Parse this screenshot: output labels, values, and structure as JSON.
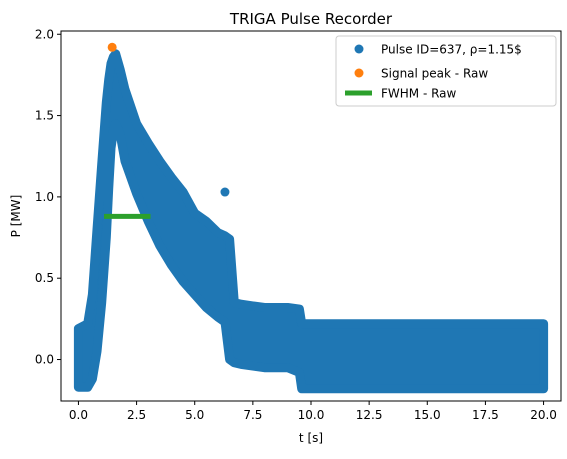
{
  "chart_data": {
    "type": "scatter",
    "title": "TRIGA Pulse Recorder",
    "xlabel": "t [s]",
    "ylabel": "P [MW]",
    "xlim": [
      -0.75,
      20.75
    ],
    "ylim": [
      -0.255,
      2.02
    ],
    "xticks": [
      0.0,
      2.5,
      5.0,
      7.5,
      10.0,
      12.5,
      15.0,
      17.5,
      20.0
    ],
    "xtick_labels": [
      "0.0",
      "2.5",
      "5.0",
      "7.5",
      "10.0",
      "12.5",
      "15.0",
      "17.5",
      "20.0"
    ],
    "yticks": [
      0.0,
      0.5,
      1.0,
      1.5,
      2.0
    ],
    "ytick_labels": [
      "0.0",
      "0.5",
      "1.0",
      "1.5",
      "2.0"
    ],
    "grid": false,
    "legend_position": "top-right",
    "series": [
      {
        "name": "Pulse ID=637, ρ=1.15$",
        "kind": "scatter-band",
        "color": "#1f77b4",
        "envelope": {
          "t": [
            0.0,
            0.4,
            0.6,
            0.8,
            1.0,
            1.2,
            1.3,
            1.4,
            1.5,
            1.6,
            1.8,
            2.0,
            2.5,
            3.0,
            3.5,
            4.0,
            4.5,
            5.0,
            5.5,
            6.0,
            6.3,
            6.5,
            6.7,
            7.0,
            7.5,
            8.0,
            9.0,
            9.5,
            9.6,
            10.0,
            12.5,
            15.0,
            17.5,
            20.0
          ],
          "upper": [
            0.19,
            0.22,
            0.4,
            0.8,
            1.2,
            1.58,
            1.72,
            1.82,
            1.86,
            1.88,
            1.78,
            1.66,
            1.45,
            1.33,
            1.22,
            1.12,
            1.03,
            0.9,
            0.85,
            0.78,
            0.76,
            0.74,
            0.35,
            0.34,
            0.33,
            0.32,
            0.32,
            0.31,
            0.22,
            0.22,
            0.22,
            0.22,
            0.22,
            0.22
          ],
          "lower": [
            -0.17,
            -0.17,
            -0.12,
            0.05,
            0.35,
            0.75,
            1.05,
            1.3,
            1.4,
            1.45,
            1.38,
            1.22,
            1.02,
            0.85,
            0.7,
            0.58,
            0.48,
            0.4,
            0.32,
            0.26,
            0.23,
            0.0,
            -0.02,
            -0.03,
            -0.04,
            -0.05,
            -0.05,
            -0.08,
            -0.18,
            -0.18,
            -0.18,
            -0.18,
            -0.18,
            -0.18
          ]
        },
        "outliers": [
          [
            6.3,
            1.03
          ]
        ]
      },
      {
        "name": "Signal peak - Raw",
        "kind": "point",
        "color": "#ff7f0e",
        "x": [
          1.45
        ],
        "y": [
          1.92
        ]
      },
      {
        "name": "FWHM - Raw",
        "kind": "segment",
        "color": "#2ca02c",
        "x": [
          1.1,
          3.1
        ],
        "y": [
          0.88,
          0.88
        ]
      }
    ]
  }
}
